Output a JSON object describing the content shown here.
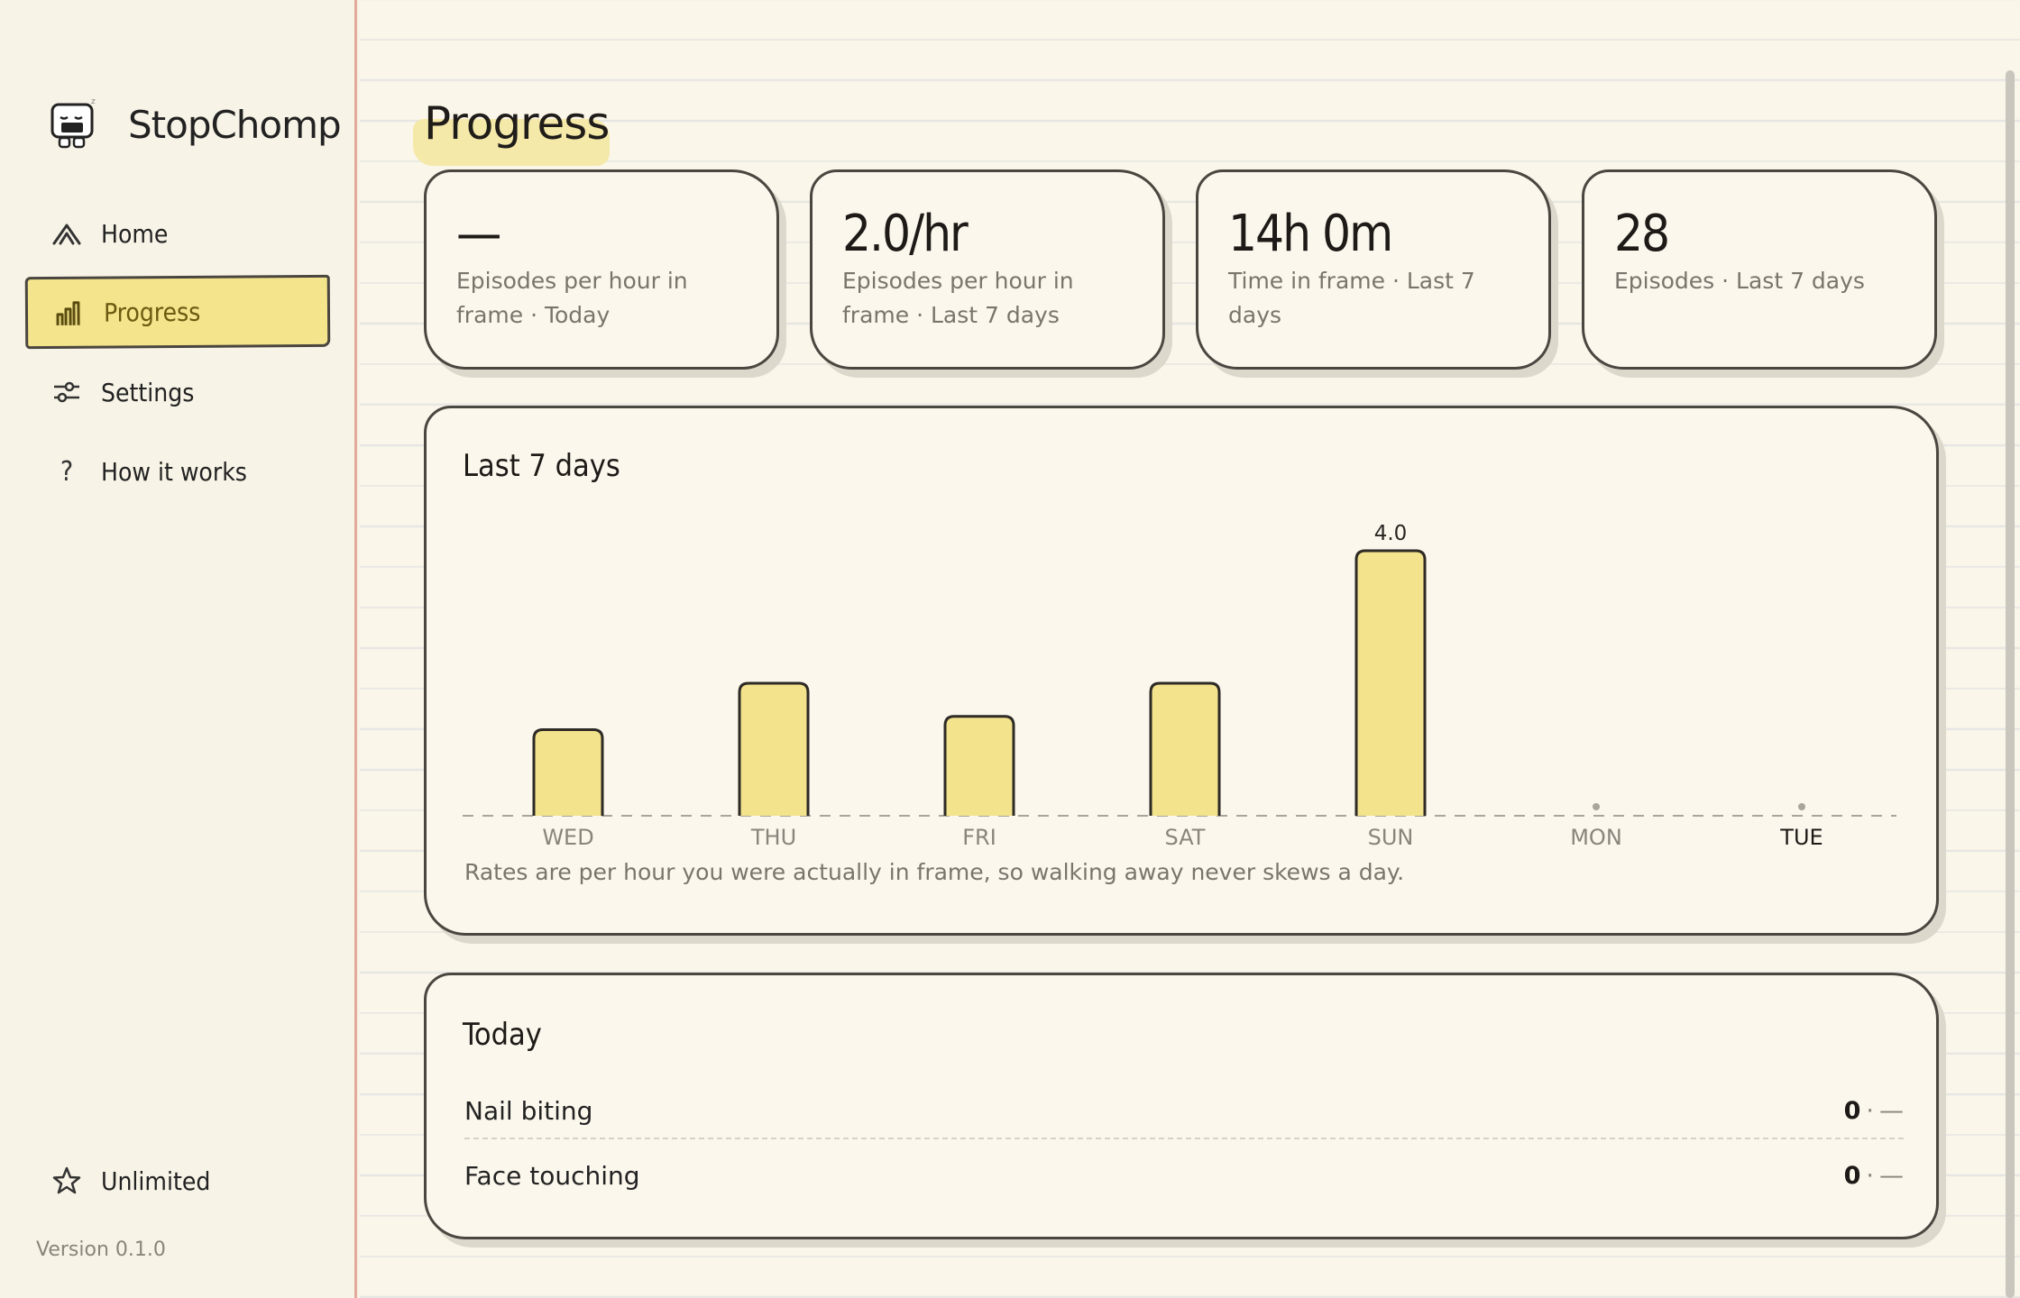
{
  "app": {
    "name": "StopChomp",
    "version": "Version 0.1.0"
  },
  "sidebar": {
    "items": [
      {
        "label": "Home",
        "icon": "home-icon",
        "active": false
      },
      {
        "label": "Progress",
        "icon": "bar-chart-icon",
        "active": true
      },
      {
        "label": "Settings",
        "icon": "sliders-icon",
        "active": false
      },
      {
        "label": "How it works",
        "icon": "question-icon",
        "active": false
      }
    ],
    "unlimited": {
      "label": "Unlimited",
      "icon": "star-icon"
    }
  },
  "page": {
    "title": "Progress"
  },
  "stats": [
    {
      "value": "—",
      "label": "Episodes per hour in frame · Today"
    },
    {
      "value": "2.0/hr",
      "label": "Episodes per hour in frame · Last 7 days"
    },
    {
      "value": "14h 0m",
      "label": "Time in frame · Last 7 days"
    },
    {
      "value": "28",
      "label": "Episodes · Last 7 days"
    }
  ],
  "chart": {
    "title": "Last 7 days",
    "note": "Rates are per hour you were actually in frame, so walking away never skews a day."
  },
  "chart_data": {
    "type": "bar",
    "title": "Last 7 days",
    "categories": [
      "WED",
      "THU",
      "FRI",
      "SAT",
      "SUN",
      "MON",
      "TUE"
    ],
    "values": [
      1.3,
      2.0,
      1.5,
      2.0,
      4.0,
      null,
      null
    ],
    "data_labels": {
      "SUN": "4.0"
    },
    "highlighted_category": "TUE",
    "ylim": [
      0,
      4.0
    ],
    "grid": false
  },
  "today": {
    "title": "Today",
    "rows": [
      {
        "label": "Nail biting",
        "count": "0",
        "separator": "·",
        "rate": "—"
      },
      {
        "label": "Face touching",
        "count": "0",
        "separator": "·",
        "rate": "—"
      }
    ]
  },
  "colors": {
    "accent": "#f4e48c",
    "bar_fill": "#f3e38d",
    "border": "#4a4640",
    "paper": "#faf6ea",
    "margin_line": "#e3a99a"
  }
}
